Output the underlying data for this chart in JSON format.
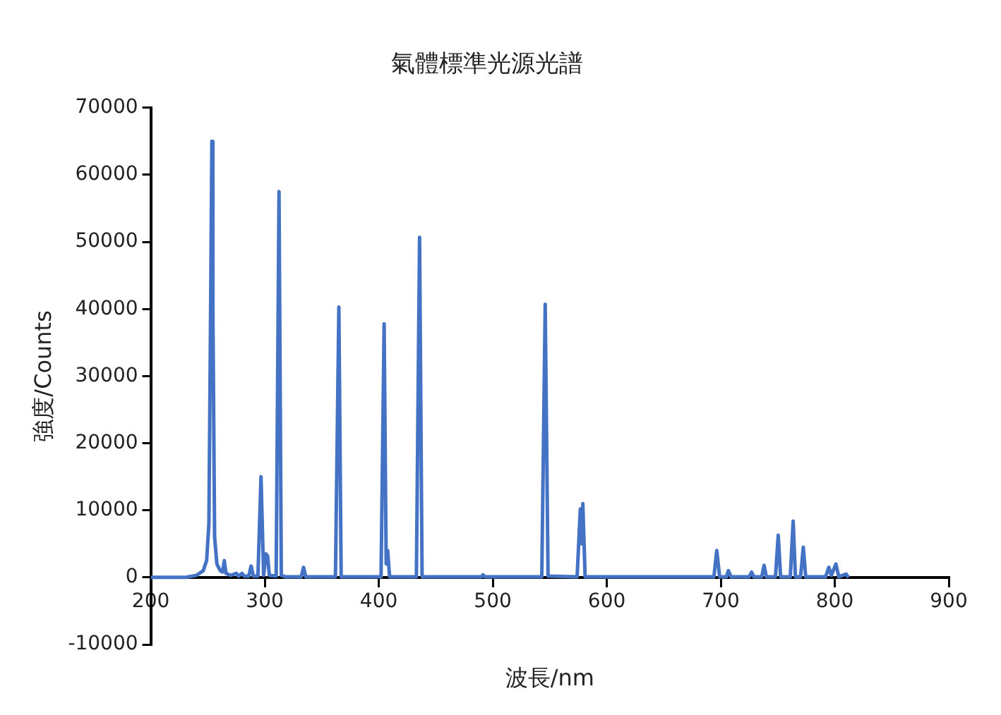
{
  "chart_data": {
    "type": "line",
    "title": "氣體標準光源光譜",
    "xlabel": "波長/nm",
    "ylabel": "強度/Counts",
    "xlim": [
      200,
      900
    ],
    "xticks": [
      200,
      300,
      400,
      500,
      600,
      700,
      800,
      900
    ],
    "ylim": [
      -10000,
      70000
    ],
    "yticks": [
      -10000,
      0,
      10000,
      20000,
      30000,
      40000,
      50000,
      60000,
      70000
    ],
    "marker": "none",
    "legend": false,
    "series": [
      {
        "color": "#4472c4",
        "x": [
          200,
          230,
          240,
          246,
          249,
          251,
          252.5,
          253.6,
          254.5,
          256,
          258,
          261,
          263,
          264.5,
          266,
          270,
          275,
          277,
          280,
          282,
          286,
          288,
          290,
          294,
          296.7,
          299,
          301,
          302.5,
          304,
          310,
          312.5,
          314.5,
          318,
          332,
          334,
          336,
          362,
          365,
          367,
          402,
          404.7,
          406.5,
          407.8,
          409.5,
          433,
          435.8,
          438,
          490,
          491.5,
          493,
          543,
          546,
          548.5,
          574,
          576.8,
          578,
          579,
          581,
          694,
          696.5,
          699,
          705,
          706.7,
          709,
          725,
          727,
          729,
          736,
          738,
          740,
          748,
          750.4,
          752.5,
          761,
          763.5,
          765.5,
          770,
          772.4,
          774.5,
          792,
          794.8,
          797,
          801,
          803.5,
          810,
          812
        ],
        "values": [
          0,
          0,
          300,
          1000,
          2500,
          8000,
          40000,
          65000,
          40000,
          6000,
          2000,
          1000,
          800,
          2500,
          600,
          300,
          600,
          200,
          600,
          200,
          200,
          1700,
          200,
          200,
          15000,
          300,
          3500,
          3200,
          300,
          200,
          57500,
          300,
          100,
          100,
          1500,
          100,
          100,
          40300,
          100,
          100,
          37800,
          2000,
          4000,
          100,
          100,
          50700,
          100,
          100,
          400,
          100,
          100,
          40700,
          200,
          100,
          10200,
          5000,
          11000,
          100,
          100,
          4000,
          100,
          100,
          1000,
          100,
          100,
          800,
          100,
          100,
          1800,
          100,
          100,
          6300,
          100,
          100,
          8400,
          100,
          100,
          4500,
          100,
          100,
          1500,
          300,
          2000,
          100,
          500,
          0
        ]
      }
    ]
  }
}
